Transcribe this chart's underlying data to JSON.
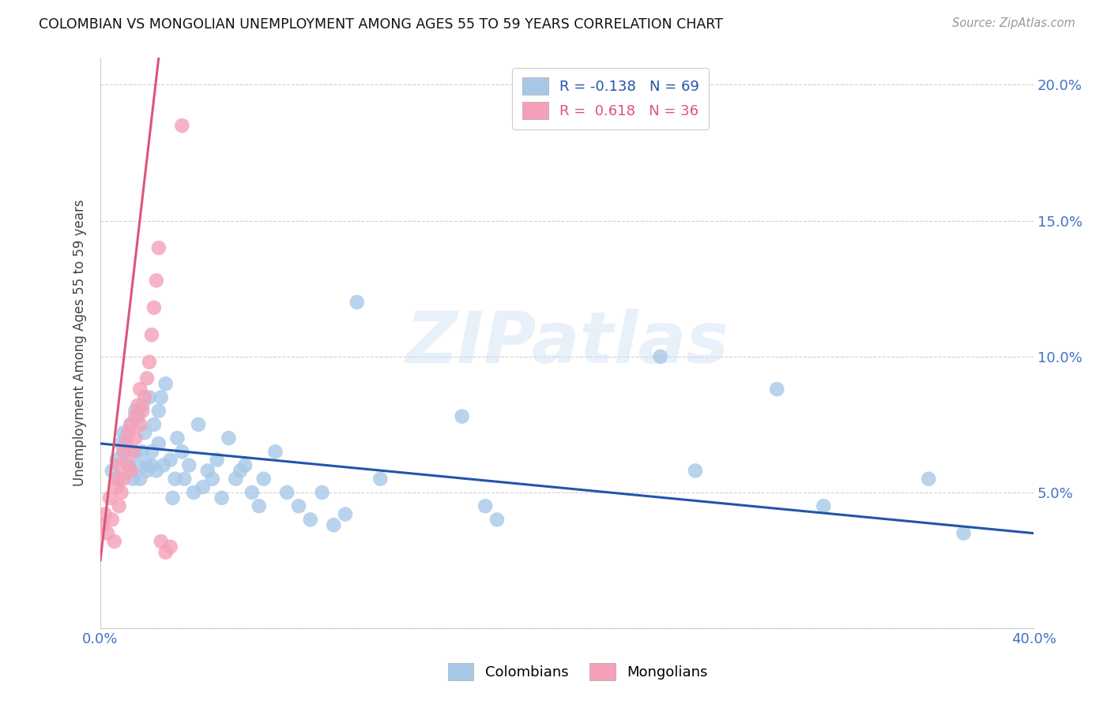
{
  "title": "COLOMBIAN VS MONGOLIAN UNEMPLOYMENT AMONG AGES 55 TO 59 YEARS CORRELATION CHART",
  "source": "Source: ZipAtlas.com",
  "ylabel": "Unemployment Among Ages 55 to 59 years",
  "xlim": [
    0.0,
    0.4
  ],
  "ylim": [
    0.0,
    0.21
  ],
  "xtick_positions": [
    0.0,
    0.05,
    0.1,
    0.15,
    0.2,
    0.25,
    0.3,
    0.35,
    0.4
  ],
  "xtick_labels": [
    "0.0%",
    "",
    "",
    "",
    "",
    "",
    "",
    "",
    "40.0%"
  ],
  "ytick_positions": [
    0.0,
    0.05,
    0.1,
    0.15,
    0.2
  ],
  "ytick_labels": [
    "",
    "5.0%",
    "10.0%",
    "15.0%",
    "20.0%"
  ],
  "watermark": "ZIPatlas",
  "colombians_color": "#a8c8e8",
  "mongolians_color": "#f5a0b8",
  "trend_blue_color": "#2255aa",
  "trend_pink_color": "#dd5577",
  "legend_blue_label": "R = -0.138   N = 69",
  "legend_pink_label": "R =  0.618   N = 36",
  "colombians_label": "Colombians",
  "mongolians_label": "Mongolians",
  "colombians_x": [
    0.005,
    0.007,
    0.008,
    0.009,
    0.01,
    0.01,
    0.011,
    0.012,
    0.013,
    0.014,
    0.015,
    0.015,
    0.016,
    0.016,
    0.017,
    0.018,
    0.018,
    0.019,
    0.02,
    0.02,
    0.021,
    0.022,
    0.022,
    0.023,
    0.024,
    0.025,
    0.025,
    0.026,
    0.027,
    0.028,
    0.03,
    0.031,
    0.032,
    0.033,
    0.035,
    0.036,
    0.038,
    0.04,
    0.042,
    0.044,
    0.046,
    0.048,
    0.05,
    0.052,
    0.055,
    0.058,
    0.06,
    0.062,
    0.065,
    0.068,
    0.07,
    0.075,
    0.08,
    0.085,
    0.09,
    0.095,
    0.1,
    0.105,
    0.11,
    0.12,
    0.155,
    0.165,
    0.17,
    0.24,
    0.255,
    0.29,
    0.31,
    0.355,
    0.37
  ],
  "colombians_y": [
    0.058,
    0.062,
    0.055,
    0.068,
    0.072,
    0.065,
    0.07,
    0.06,
    0.075,
    0.055,
    0.08,
    0.065,
    0.06,
    0.078,
    0.055,
    0.082,
    0.065,
    0.072,
    0.06,
    0.058,
    0.085,
    0.065,
    0.06,
    0.075,
    0.058,
    0.08,
    0.068,
    0.085,
    0.06,
    0.09,
    0.062,
    0.048,
    0.055,
    0.07,
    0.065,
    0.055,
    0.06,
    0.05,
    0.075,
    0.052,
    0.058,
    0.055,
    0.062,
    0.048,
    0.07,
    0.055,
    0.058,
    0.06,
    0.05,
    0.045,
    0.055,
    0.065,
    0.05,
    0.045,
    0.04,
    0.05,
    0.038,
    0.042,
    0.12,
    0.055,
    0.078,
    0.045,
    0.04,
    0.1,
    0.058,
    0.088,
    0.045,
    0.055,
    0.035
  ],
  "mongolians_x": [
    0.001,
    0.002,
    0.003,
    0.004,
    0.005,
    0.006,
    0.007,
    0.007,
    0.008,
    0.008,
    0.009,
    0.01,
    0.01,
    0.011,
    0.012,
    0.012,
    0.013,
    0.013,
    0.014,
    0.015,
    0.015,
    0.016,
    0.017,
    0.017,
    0.018,
    0.019,
    0.02,
    0.021,
    0.022,
    0.023,
    0.024,
    0.025,
    0.026,
    0.028,
    0.03,
    0.035
  ],
  "mongolians_y": [
    0.038,
    0.042,
    0.035,
    0.048,
    0.04,
    0.032,
    0.052,
    0.055,
    0.045,
    0.06,
    0.05,
    0.065,
    0.055,
    0.068,
    0.06,
    0.072,
    0.058,
    0.075,
    0.065,
    0.078,
    0.07,
    0.082,
    0.075,
    0.088,
    0.08,
    0.085,
    0.092,
    0.098,
    0.108,
    0.118,
    0.128,
    0.14,
    0.032,
    0.028,
    0.03,
    0.185
  ],
  "blue_trend_x": [
    0.0,
    0.4
  ],
  "blue_trend_y": [
    0.068,
    0.035
  ],
  "pink_trend_x": [
    0.0,
    0.025
  ],
  "pink_trend_y": [
    0.025,
    0.21
  ]
}
